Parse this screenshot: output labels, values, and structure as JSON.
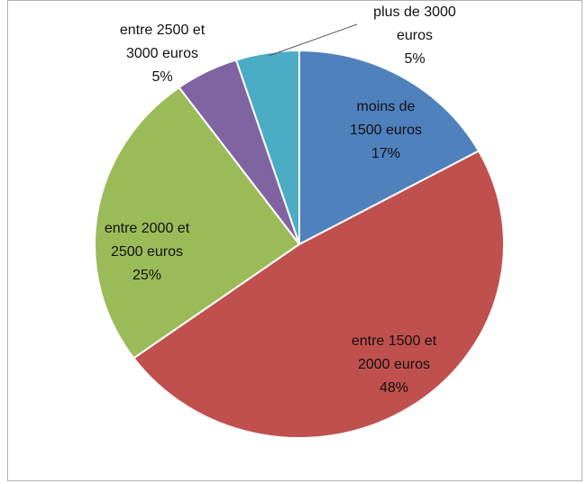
{
  "chart_data": {
    "type": "pie",
    "categories": [
      "moins de 1500 euros",
      "entre 1500 et 2000 euros",
      "entre 2000 et 2500 euros",
      "entre 2500 et 3000 euros",
      "plus de 3000 euros"
    ],
    "values": [
      17,
      48,
      25,
      5,
      5
    ],
    "value_labels": [
      "17%",
      "48%",
      "25%",
      "5%",
      "5%"
    ],
    "colors": [
      "#4f81bd",
      "#c0504d",
      "#9bbb59",
      "#8064a2",
      "#4bacc6"
    ]
  }
}
